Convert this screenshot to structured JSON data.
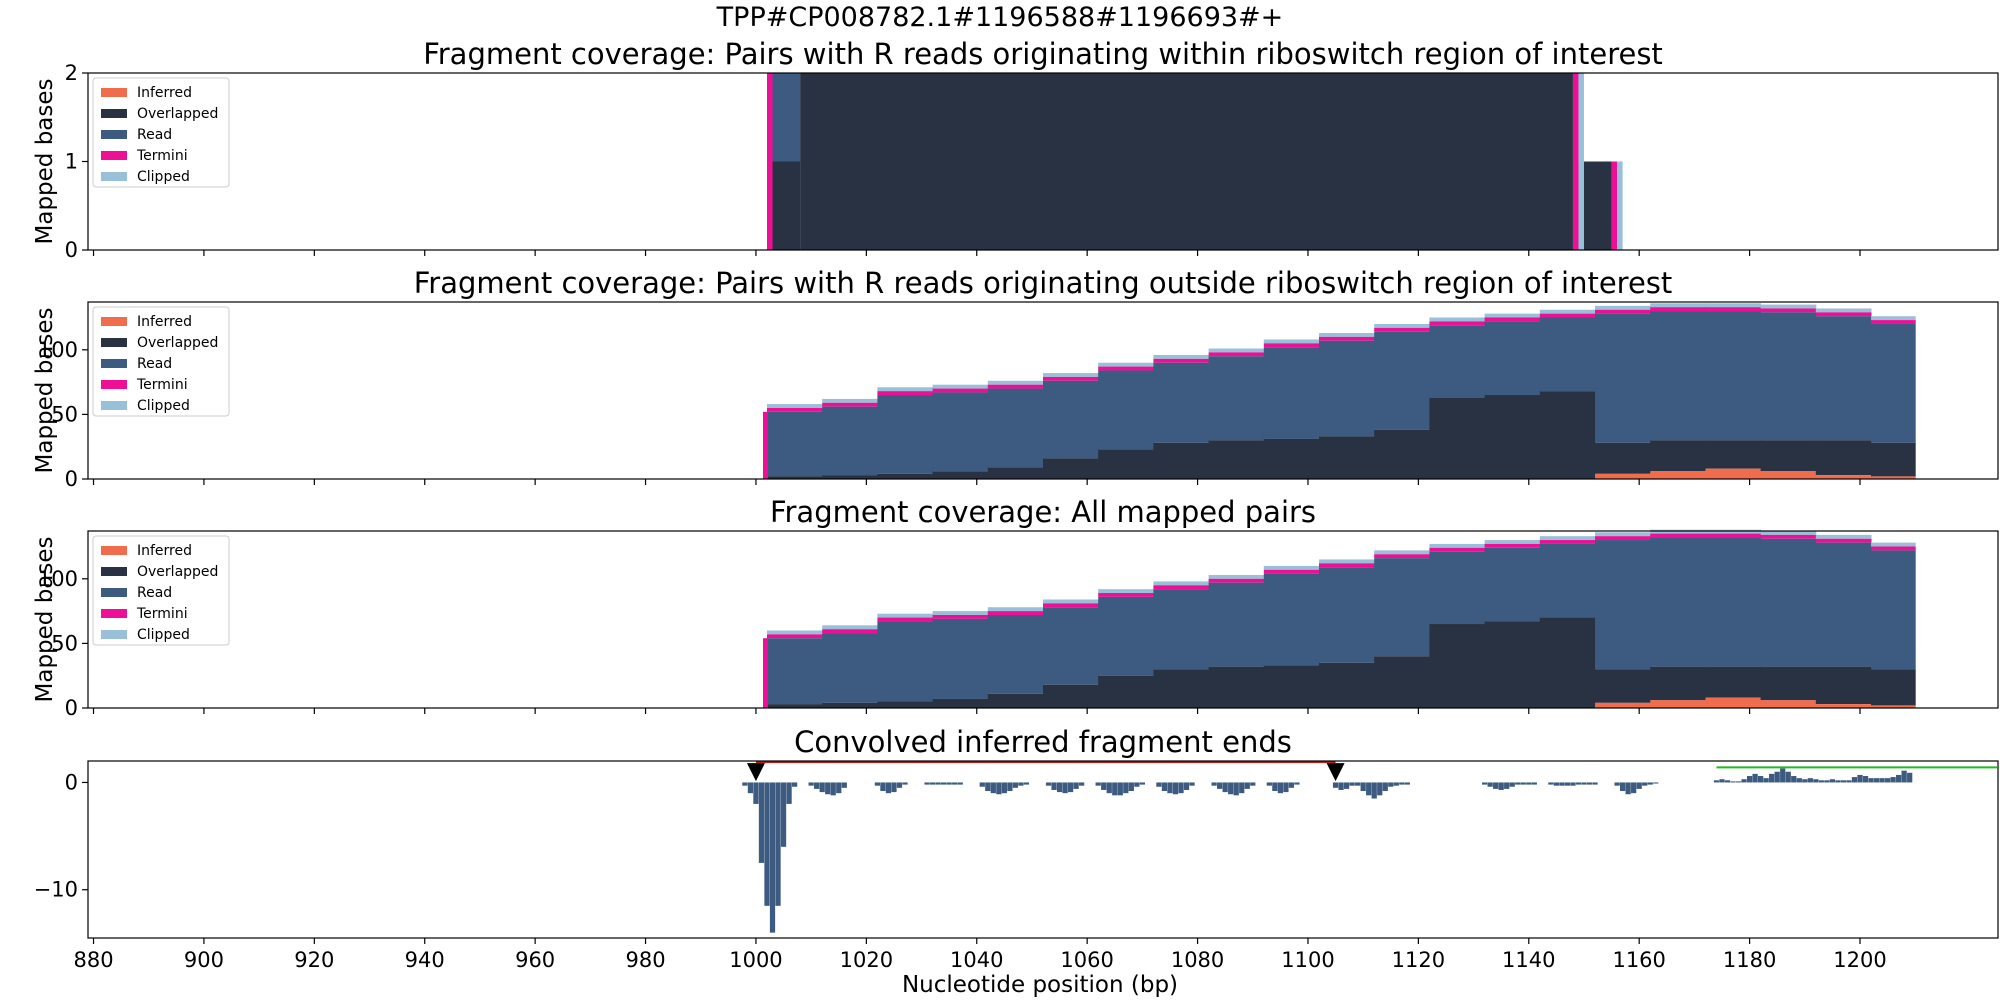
{
  "figure": {
    "suptitle": "TPP#CP008782.1#1196588#1196693#+",
    "xlabel": "Nucleotide position (bp)"
  },
  "colors": {
    "inferred": "#ef6c4d",
    "overlapped": "#283243",
    "read": "#3d5a80",
    "termini": "#ee0f96",
    "clipped": "#98c1d9",
    "bracket_red": "#b22222",
    "bracket_green": "#22bb22"
  },
  "legend": {
    "placement": "upper-left",
    "items": [
      {
        "label": "Inferred",
        "color": "#ef6c4d"
      },
      {
        "label": "Overlapped",
        "color": "#283243"
      },
      {
        "label": "Read",
        "color": "#3d5a80"
      },
      {
        "label": "Termini",
        "color": "#ee0f96"
      },
      {
        "label": "Clipped",
        "color": "#98c1d9"
      }
    ]
  },
  "chart_data": [
    {
      "type": "area",
      "title": "Fragment coverage: Pairs with R reads originating within riboswitch region of interest",
      "ylabel": "Mapped bases",
      "xlim": [
        879,
        1225
      ],
      "ylim": [
        0,
        2
      ],
      "yticks": [
        0,
        1,
        2
      ],
      "xticks": [
        880,
        900,
        920,
        940,
        960,
        980,
        1000,
        1020,
        1040,
        1060,
        1080,
        1100,
        1120,
        1140,
        1160,
        1180,
        1200
      ],
      "show_xtick_labels": false,
      "series": [
        {
          "name": "Overlapped",
          "segments": [
            [
              1003,
              1008,
              1
            ],
            [
              1008,
              1148,
              2
            ],
            [
              1148,
              1155,
              1
            ]
          ]
        },
        {
          "name": "Read",
          "segments": [
            [
              1003,
              1008,
              1
            ]
          ]
        },
        {
          "name": "Termini",
          "segments": [
            [
              1002,
              1003,
              2
            ],
            [
              1148,
              1149,
              2
            ],
            [
              1155,
              1156,
              1
            ]
          ]
        },
        {
          "name": "Clipped",
          "segments": [
            [
              1149,
              1150,
              2
            ],
            [
              1156,
              1157,
              1
            ]
          ]
        }
      ]
    },
    {
      "type": "area",
      "title": "Fragment coverage: Pairs with R reads originating outside riboswitch region of interest",
      "ylabel": "Mapped bases",
      "xlim": [
        879,
        1225
      ],
      "ylim": [
        0,
        137
      ],
      "yticks": [
        0,
        50,
        100
      ],
      "xticks": [
        880,
        900,
        920,
        940,
        960,
        980,
        1000,
        1020,
        1040,
        1060,
        1080,
        1100,
        1120,
        1140,
        1160,
        1180,
        1200
      ],
      "show_xtick_labels": false,
      "x": [
        1002,
        1012,
        1022,
        1032,
        1042,
        1052,
        1062,
        1072,
        1082,
        1092,
        1102,
        1112,
        1122,
        1132,
        1142,
        1152,
        1162,
        1172,
        1182,
        1192,
        1202,
        1210
      ],
      "total": [
        52,
        56,
        65,
        67,
        70,
        76,
        84,
        90,
        95,
        102,
        107,
        114,
        119,
        122,
        125,
        128,
        130,
        130,
        129,
        126,
        120,
        114
      ],
      "overlapped": [
        2,
        3,
        4,
        6,
        9,
        16,
        23,
        28,
        30,
        31,
        33,
        38,
        63,
        65,
        68,
        28,
        30,
        30,
        30,
        30,
        28,
        27
      ],
      "inferred": [
        0,
        0,
        0,
        0,
        0,
        0,
        0,
        0,
        0,
        0,
        0,
        0,
        0,
        0,
        0,
        4,
        6,
        8,
        6,
        3,
        2,
        2
      ],
      "termini_thickness": 3,
      "clipped_thickness": 3
    },
    {
      "type": "area",
      "title": "Fragment coverage: All mapped pairs",
      "ylabel": "Mapped bases",
      "xlim": [
        879,
        1225
      ],
      "ylim": [
        0,
        137
      ],
      "yticks": [
        0,
        50,
        100
      ],
      "xticks": [
        880,
        900,
        920,
        940,
        960,
        980,
        1000,
        1020,
        1040,
        1060,
        1080,
        1100,
        1120,
        1140,
        1160,
        1180,
        1200
      ],
      "show_xtick_labels": false,
      "x": [
        1002,
        1012,
        1022,
        1032,
        1042,
        1052,
        1062,
        1072,
        1082,
        1092,
        1102,
        1112,
        1122,
        1132,
        1142,
        1152,
        1162,
        1172,
        1182,
        1192,
        1202,
        1210
      ],
      "total": [
        54,
        58,
        67,
        69,
        72,
        78,
        86,
        92,
        97,
        104,
        109,
        116,
        121,
        124,
        127,
        130,
        132,
        132,
        131,
        128,
        122,
        116
      ],
      "overlapped": [
        3,
        4,
        5,
        7,
        11,
        18,
        25,
        30,
        32,
        33,
        35,
        40,
        65,
        67,
        70,
        30,
        32,
        32,
        32,
        32,
        30,
        29
      ],
      "inferred": [
        0,
        0,
        0,
        0,
        0,
        0,
        0,
        0,
        0,
        0,
        0,
        0,
        0,
        0,
        0,
        4,
        6,
        8,
        6,
        3,
        2,
        2
      ],
      "termini_thickness": 3,
      "clipped_thickness": 3
    },
    {
      "type": "bar",
      "title": "Convolved inferred fragment ends",
      "ylabel": "",
      "xlabel": "Nucleotide position (bp)",
      "xlim": [
        879,
        1225
      ],
      "ylim": [
        -14.5,
        2
      ],
      "yticks": [
        -10,
        0
      ],
      "xticks": [
        880,
        900,
        920,
        940,
        960,
        980,
        1000,
        1020,
        1040,
        1060,
        1080,
        1100,
        1120,
        1140,
        1160,
        1180,
        1200
      ],
      "show_xtick_labels": true,
      "x": [
        998,
        999,
        1000,
        1001,
        1002,
        1003,
        1004,
        1005,
        1006,
        1007,
        1010,
        1011,
        1012,
        1013,
        1014,
        1015,
        1016,
        1022,
        1023,
        1024,
        1025,
        1026,
        1027,
        1031,
        1032,
        1033,
        1034,
        1035,
        1036,
        1037,
        1041,
        1042,
        1043,
        1044,
        1045,
        1046,
        1047,
        1048,
        1049,
        1053,
        1054,
        1055,
        1056,
        1057,
        1058,
        1059,
        1062,
        1063,
        1064,
        1065,
        1066,
        1067,
        1068,
        1069,
        1070,
        1073,
        1074,
        1075,
        1076,
        1077,
        1078,
        1079,
        1083,
        1084,
        1085,
        1086,
        1087,
        1088,
        1089,
        1090,
        1093,
        1094,
        1095,
        1096,
        1097,
        1098,
        1105,
        1106,
        1107,
        1108,
        1109,
        1110,
        1111,
        1112,
        1113,
        1114,
        1115,
        1116,
        1117,
        1118,
        1132,
        1133,
        1134,
        1135,
        1136,
        1137,
        1138,
        1139,
        1140,
        1141,
        1144,
        1145,
        1146,
        1147,
        1148,
        1149,
        1150,
        1151,
        1152,
        1156,
        1157,
        1158,
        1159,
        1160,
        1161,
        1162,
        1163,
        1174,
        1175,
        1176,
        1177,
        1178,
        1179,
        1180,
        1181,
        1182,
        1183,
        1184,
        1185,
        1186,
        1187,
        1188,
        1189,
        1190,
        1191,
        1192,
        1193,
        1194,
        1195,
        1196,
        1197,
        1198,
        1199,
        1200,
        1201,
        1202,
        1203,
        1204,
        1205,
        1206,
        1207,
        1208,
        1209
      ],
      "values": [
        -0.3,
        -1.0,
        -2.0,
        -7.5,
        -11.5,
        -14.0,
        -11.5,
        -6.0,
        -2.0,
        -0.4,
        -0.3,
        -0.6,
        -0.9,
        -1.1,
        -1.2,
        -1.0,
        -0.5,
        -0.3,
        -0.8,
        -1.0,
        -0.9,
        -0.5,
        -0.2,
        -0.2,
        -0.2,
        -0.2,
        -0.2,
        -0.2,
        -0.2,
        -0.2,
        -0.4,
        -0.8,
        -1.0,
        -1.1,
        -1.0,
        -0.8,
        -0.5,
        -0.3,
        -0.2,
        -0.3,
        -0.7,
        -0.9,
        -1.0,
        -0.9,
        -0.6,
        -0.3,
        -0.3,
        -0.7,
        -1.0,
        -1.2,
        -1.2,
        -1.0,
        -0.8,
        -0.4,
        -0.2,
        -0.4,
        -0.8,
        -1.0,
        -1.1,
        -1.0,
        -0.7,
        -0.3,
        -0.3,
        -0.6,
        -0.9,
        -1.1,
        -1.2,
        -1.0,
        -0.6,
        -0.3,
        -0.3,
        -0.8,
        -1.0,
        -0.9,
        -0.5,
        -0.2,
        -0.5,
        -0.7,
        -0.6,
        -0.3,
        -0.3,
        -0.8,
        -1.2,
        -1.5,
        -1.2,
        -0.8,
        -0.4,
        -0.3,
        -0.2,
        -0.2,
        -0.2,
        -0.4,
        -0.6,
        -0.7,
        -0.6,
        -0.4,
        -0.2,
        -0.2,
        -0.2,
        -0.2,
        -0.2,
        -0.3,
        -0.3,
        -0.3,
        -0.3,
        -0.2,
        -0.2,
        -0.2,
        -0.2,
        -0.3,
        -0.8,
        -1.1,
        -1.0,
        -0.6,
        -0.3,
        -0.2,
        -0.1,
        0.2,
        0.3,
        0.2,
        0.1,
        0.1,
        0.3,
        0.6,
        0.8,
        0.6,
        0.4,
        0.8,
        1.0,
        1.3,
        1.0,
        0.6,
        0.4,
        0.3,
        0.4,
        0.3,
        0.2,
        0.2,
        0.3,
        0.2,
        0.2,
        0.2,
        0.5,
        0.7,
        0.6,
        0.4,
        0.4,
        0.4,
        0.4,
        0.5,
        0.7,
        1.1,
        0.9
      ],
      "markers": [
        1000,
        1105
      ],
      "red_bracket": [
        1000,
        1105
      ],
      "green_bracket": [
        1174,
        1225
      ]
    }
  ]
}
